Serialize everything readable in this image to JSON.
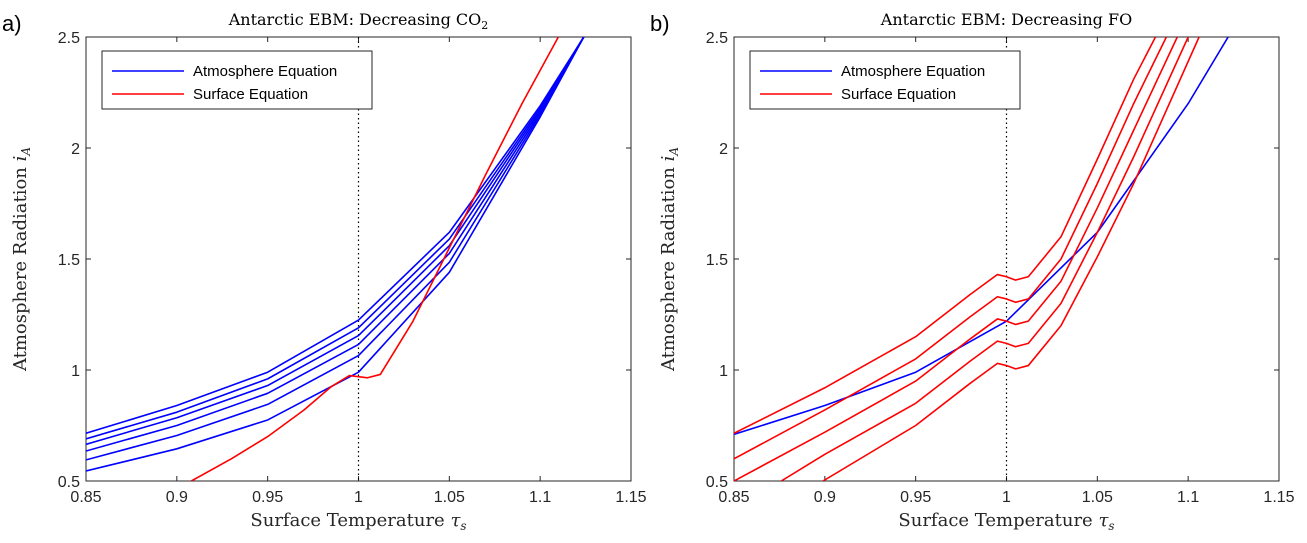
{
  "chart_data": [
    {
      "type": "line",
      "panel_label": "a)",
      "title": "Antarctic EBM: Decreasing CO",
      "title_subscript": "2",
      "xlabel": "Surface Temperature ",
      "xlabel_symbol": "τ",
      "xlabel_symbol_sub": "s",
      "ylabel": "Atmosphere Radiation ",
      "ylabel_symbol": "i",
      "ylabel_symbol_sub": "A",
      "xlim": [
        0.85,
        1.15
      ],
      "ylim": [
        0.5,
        2.5
      ],
      "xticks": [
        "0.85",
        "0.9",
        "0.95",
        "1",
        "1.05",
        "1.1",
        "1.15"
      ],
      "yticks": [
        "0.5",
        "1",
        "1.5",
        "2",
        "2.5"
      ],
      "vline_x": 1.0,
      "legend": {
        "position": "top-left",
        "entries": [
          {
            "label": "Atmosphere Equation",
            "color": "#0000ff"
          },
          {
            "label": "Surface Equation",
            "color": "#ff0000"
          }
        ]
      },
      "series": [
        {
          "color": "#0000ff",
          "x": [
            0.85,
            0.9,
            0.95,
            1.0,
            1.05,
            1.1,
            1.124
          ],
          "y": [
            0.715,
            0.84,
            0.99,
            1.225,
            1.62,
            2.19,
            2.5
          ]
        },
        {
          "color": "#0000ff",
          "x": [
            0.85,
            0.9,
            0.95,
            1.0,
            1.05,
            1.1,
            1.124
          ],
          "y": [
            0.69,
            0.81,
            0.96,
            1.19,
            1.59,
            2.18,
            2.5
          ]
        },
        {
          "color": "#0000ff",
          "x": [
            0.85,
            0.9,
            0.95,
            1.0,
            1.05,
            1.1,
            1.124
          ],
          "y": [
            0.665,
            0.785,
            0.93,
            1.155,
            1.56,
            2.17,
            2.5
          ]
        },
        {
          "color": "#0000ff",
          "x": [
            0.85,
            0.9,
            0.95,
            1.0,
            1.05,
            1.1,
            1.124
          ],
          "y": [
            0.635,
            0.75,
            0.895,
            1.115,
            1.525,
            2.16,
            2.5
          ]
        },
        {
          "color": "#0000ff",
          "x": [
            0.85,
            0.9,
            0.95,
            1.0,
            1.05,
            1.1,
            1.124
          ],
          "y": [
            0.595,
            0.705,
            0.845,
            1.065,
            1.485,
            2.15,
            2.5
          ]
        },
        {
          "color": "#0000ff",
          "x": [
            0.85,
            0.9,
            0.95,
            1.0,
            1.05,
            1.1,
            1.124
          ],
          "y": [
            0.545,
            0.645,
            0.775,
            0.99,
            1.44,
            2.14,
            2.5
          ]
        },
        {
          "color": "#ff0000",
          "x": [
            0.908,
            0.93,
            0.95,
            0.97,
            0.985,
            0.995,
            1.0,
            1.005,
            1.012,
            1.03,
            1.05,
            1.07,
            1.09,
            1.11
          ],
          "y": [
            0.5,
            0.6,
            0.7,
            0.82,
            0.925,
            0.975,
            0.97,
            0.965,
            0.98,
            1.22,
            1.55,
            1.88,
            2.2,
            2.5
          ]
        }
      ]
    },
    {
      "type": "line",
      "panel_label": "b)",
      "title": "Antarctic EBM: Decreasing FO",
      "xlabel": "Surface Temperature ",
      "xlabel_symbol": "τ",
      "xlabel_symbol_sub": "s",
      "ylabel": "Atmosphere Radiation ",
      "ylabel_symbol": "i",
      "ylabel_symbol_sub": "A",
      "xlim": [
        0.85,
        1.15
      ],
      "ylim": [
        0.5,
        2.5
      ],
      "xticks": [
        "0.85",
        "0.9",
        "0.95",
        "1",
        "1.05",
        "1.1",
        "1.15"
      ],
      "yticks": [
        "0.5",
        "1",
        "1.5",
        "2",
        "2.5"
      ],
      "vline_x": 1.0,
      "legend": {
        "position": "top-left",
        "entries": [
          {
            "label": "Atmosphere Equation",
            "color": "#0000ff"
          },
          {
            "label": "Surface Equation",
            "color": "#ff0000"
          }
        ]
      },
      "series": [
        {
          "color": "#0000ff",
          "x": [
            0.85,
            0.9,
            0.95,
            1.0,
            1.05,
            1.1,
            1.122
          ],
          "y": [
            0.71,
            0.84,
            0.99,
            1.22,
            1.62,
            2.2,
            2.5
          ]
        },
        {
          "color": "#ff0000",
          "x": [
            0.85,
            0.9,
            0.95,
            0.98,
            0.995,
            1.0,
            1.005,
            1.012,
            1.03,
            1.05,
            1.07,
            1.082
          ],
          "y": [
            0.715,
            0.92,
            1.15,
            1.34,
            1.43,
            1.42,
            1.405,
            1.42,
            1.6,
            1.95,
            2.31,
            2.5
          ]
        },
        {
          "color": "#ff0000",
          "x": [
            0.85,
            0.9,
            0.95,
            0.98,
            0.995,
            1.0,
            1.005,
            1.012,
            1.03,
            1.05,
            1.07,
            1.088
          ],
          "y": [
            0.6,
            0.82,
            1.05,
            1.24,
            1.33,
            1.32,
            1.305,
            1.32,
            1.5,
            1.84,
            2.2,
            2.5
          ]
        },
        {
          "color": "#ff0000",
          "x": [
            0.85,
            0.9,
            0.95,
            0.98,
            0.995,
            1.0,
            1.005,
            1.012,
            1.03,
            1.05,
            1.07,
            1.094
          ],
          "y": [
            0.5,
            0.72,
            0.95,
            1.14,
            1.23,
            1.22,
            1.205,
            1.22,
            1.4,
            1.73,
            2.08,
            2.5
          ]
        },
        {
          "color": "#ff0000",
          "x": [
            0.876,
            0.9,
            0.95,
            0.98,
            0.995,
            1.0,
            1.005,
            1.012,
            1.03,
            1.05,
            1.07,
            1.1
          ],
          "y": [
            0.5,
            0.62,
            0.85,
            1.04,
            1.13,
            1.12,
            1.105,
            1.12,
            1.3,
            1.62,
            1.96,
            2.5
          ]
        },
        {
          "color": "#ff0000",
          "x": [
            0.899,
            0.95,
            0.98,
            0.995,
            1.0,
            1.005,
            1.012,
            1.03,
            1.05,
            1.07,
            1.106
          ],
          "y": [
            0.5,
            0.75,
            0.94,
            1.03,
            1.02,
            1.005,
            1.02,
            1.2,
            1.51,
            1.84,
            2.5
          ]
        }
      ]
    }
  ]
}
